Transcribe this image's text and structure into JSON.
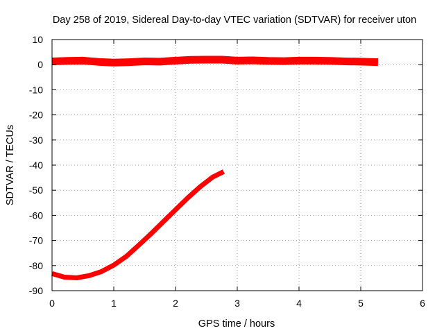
{
  "chart_data": {
    "type": "scatter",
    "title": "Day 258 of 2019, Sidereal Day-to-day VTEC variation (SDTVAR) for receiver uton",
    "xlabel": "GPS time / hours",
    "ylabel": "SDTVAR / TECUs",
    "xlim": [
      0,
      6
    ],
    "ylim": [
      -90,
      10
    ],
    "x_ticks": [
      0,
      1,
      2,
      3,
      4,
      5,
      6
    ],
    "y_ticks": [
      10,
      0,
      -10,
      -20,
      -30,
      -40,
      -50,
      -60,
      -70,
      -80,
      -90
    ],
    "grid": true,
    "legend": "none",
    "series_color": "#ff0000",
    "series": [
      {
        "description": "near-zero band",
        "x": [
          0.0,
          0.25,
          0.5,
          0.75,
          1.0,
          1.25,
          1.5,
          1.75,
          2.0,
          2.25,
          2.5,
          2.75,
          3.0,
          3.25,
          3.5,
          3.75,
          4.0,
          4.25,
          4.5,
          4.75,
          5.0,
          5.28
        ],
        "y": [
          1.3,
          1.5,
          1.6,
          1.1,
          0.8,
          1.0,
          1.3,
          1.2,
          1.6,
          1.9,
          2.0,
          2.0,
          1.6,
          1.7,
          1.5,
          1.4,
          1.6,
          1.6,
          1.5,
          1.3,
          1.2,
          1.0
        ]
      },
      {
        "description": "descending-recovering arc",
        "x": [
          0.0,
          0.2,
          0.4,
          0.6,
          0.8,
          1.0,
          1.2,
          1.4,
          1.6,
          1.8,
          2.0,
          2.2,
          2.4,
          2.6,
          2.78
        ],
        "y": [
          -83.2,
          -84.6,
          -84.9,
          -84.0,
          -82.4,
          -79.8,
          -76.4,
          -72.0,
          -67.4,
          -62.6,
          -57.8,
          -53.0,
          -48.6,
          -44.8,
          -42.6
        ]
      }
    ]
  }
}
